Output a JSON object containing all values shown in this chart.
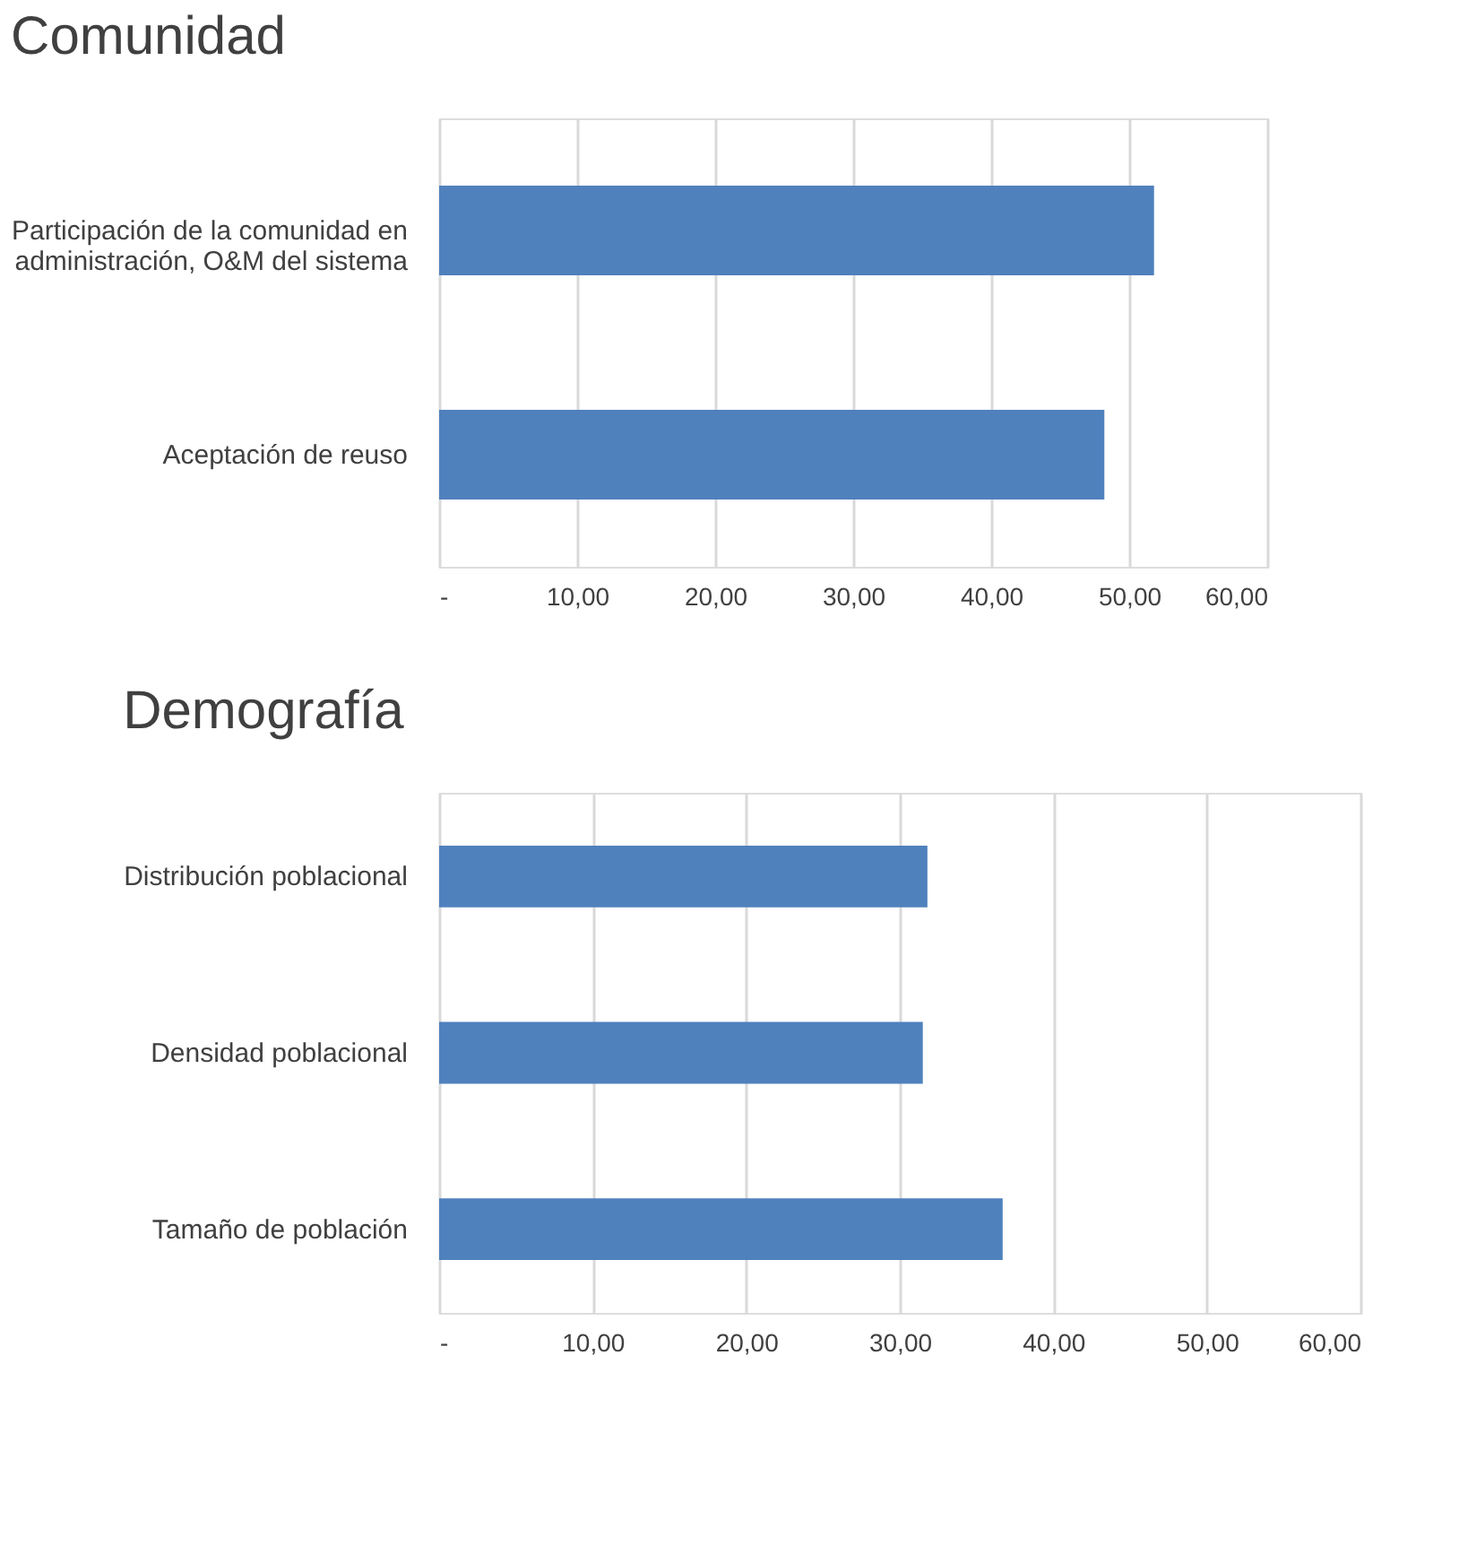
{
  "chart_data": [
    {
      "type": "bar",
      "orientation": "horizontal",
      "title": "Comunidad",
      "categories": [
        "Participación de la comunidad en administración, O&M del sistema",
        "Aceptación de reuso"
      ],
      "values": [
        51.8,
        48.2
      ],
      "color": "#4f81bd",
      "xlim": [
        0,
        60
      ],
      "xticks": [
        {
          "value": 0,
          "label": "-"
        },
        {
          "value": 10,
          "label": "10,00"
        },
        {
          "value": 20,
          "label": "20,00"
        },
        {
          "value": 30,
          "label": "30,00"
        },
        {
          "value": 40,
          "label": "40,00"
        },
        {
          "value": 50,
          "label": "50,00"
        },
        {
          "value": 60,
          "label": "60,00"
        }
      ],
      "grid": "x"
    },
    {
      "type": "bar",
      "orientation": "horizontal",
      "title": "Demografía",
      "categories": [
        "Distribución poblacional",
        "Densidad poblacional",
        "Tamaño de población"
      ],
      "values": [
        31.8,
        31.5,
        36.7
      ],
      "color": "#4f81bd",
      "xlim": [
        0,
        60
      ],
      "xticks": [
        {
          "value": 0,
          "label": "-"
        },
        {
          "value": 10,
          "label": "10,00"
        },
        {
          "value": 20,
          "label": "20,00"
        },
        {
          "value": 30,
          "label": "30,00"
        },
        {
          "value": 40,
          "label": "40,00"
        },
        {
          "value": 50,
          "label": "50,00"
        },
        {
          "value": 60,
          "label": "60,00"
        }
      ],
      "grid": "x"
    }
  ]
}
